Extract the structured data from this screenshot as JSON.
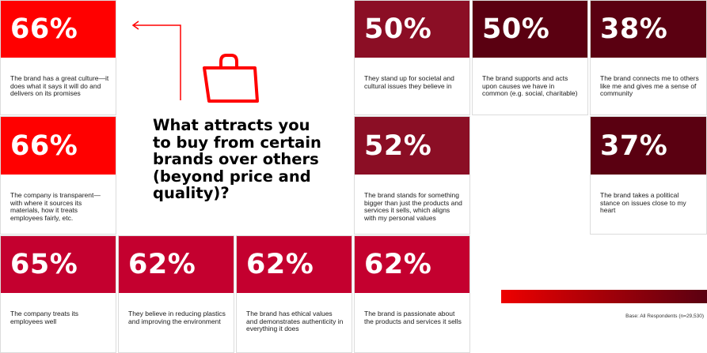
{
  "title": "What attracts you to buy from certain brands over others (beyond price and quality)?",
  "base_note": "Base: All Respondents (n=29,530)",
  "colors": {
    "red": "#ff0000",
    "crimson": "#c4002f",
    "dark_red": "#8b0e25",
    "maroon": "#5a0011",
    "background": "#ffffff"
  },
  "icons": [
    "shopping-bag-icon",
    "arrow-left-icon"
  ],
  "chart_data": {
    "type": "table",
    "unit": "%",
    "items": [
      {
        "value": 66,
        "label": "The brand has a great culture—it does what it says it will do and delivers on its promises"
      },
      {
        "value": 66,
        "label": "The company is transparent—with where it sources its materials, how it treats employees fairly, etc."
      },
      {
        "value": 65,
        "label": "The company treats its employees well"
      },
      {
        "value": 62,
        "label": "They believe in reducing plastics and improving the environment"
      },
      {
        "value": 62,
        "label": "The brand has ethical values and demonstrates authenticity in everything it does"
      },
      {
        "value": 62,
        "label": "The brand is passionate about the products and services it sells"
      },
      {
        "value": 52,
        "label": "The brand stands for something bigger than just the products and services it sells, which aligns with my personal values"
      },
      {
        "value": 50,
        "label": "They stand up for societal and cultural issues they believe in"
      },
      {
        "value": 50,
        "label": "The brand supports and acts upon causes we have in common (e.g. social, charitable)"
      },
      {
        "value": 38,
        "label": "The brand connects me to others like me and gives me a sense of community"
      },
      {
        "value": 37,
        "label": "The brand takes a political stance on issues close to my heart"
      }
    ]
  }
}
